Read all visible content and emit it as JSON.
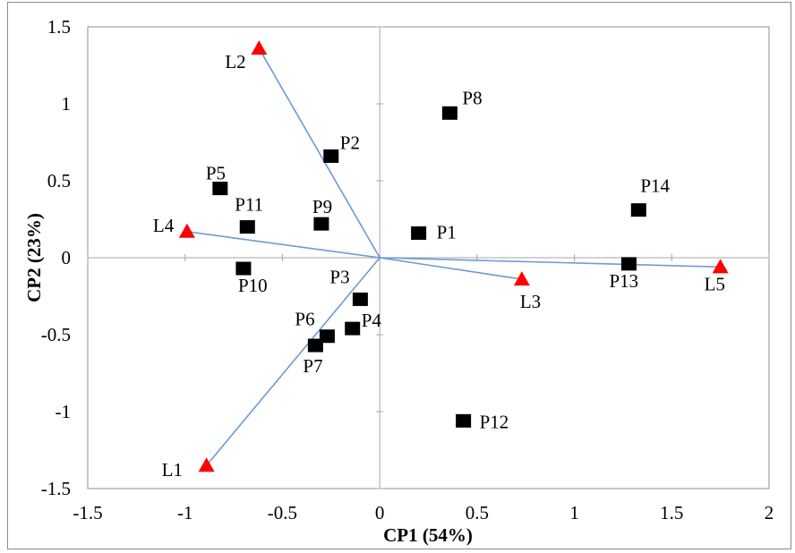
{
  "chart_data": {
    "type": "scatter",
    "title": "",
    "xlabel": "CP1 (54%)",
    "ylabel": "CP2 (23%)",
    "xlim": [
      -1.5,
      2
    ],
    "ylim": [
      -1.5,
      1.5
    ],
    "xticks": [
      -1.5,
      -1,
      -0.5,
      0,
      0.5,
      1,
      1.5,
      2
    ],
    "yticks": [
      -1.5,
      -1,
      -0.5,
      0,
      0.5,
      1,
      1.5
    ],
    "grid": false,
    "legend": "none",
    "series": [
      {
        "name": "",
        "marker": "square",
        "color": "#000000",
        "points": [
          {
            "label": "P1",
            "x": 0.2,
            "y": 0.16
          },
          {
            "label": "P2",
            "x": -0.25,
            "y": 0.66
          },
          {
            "label": "P3",
            "x": -0.1,
            "y": -0.27
          },
          {
            "label": "P4",
            "x": -0.14,
            "y": -0.46
          },
          {
            "label": "P5",
            "x": -0.82,
            "y": 0.45
          },
          {
            "label": "P6",
            "x": -0.27,
            "y": -0.51
          },
          {
            "label": "P7",
            "x": -0.33,
            "y": -0.57
          },
          {
            "label": "P8",
            "x": 0.36,
            "y": 0.94
          },
          {
            "label": "P9",
            "x": -0.3,
            "y": 0.22
          },
          {
            "label": "P10",
            "x": -0.7,
            "y": -0.07
          },
          {
            "label": "P11",
            "x": -0.68,
            "y": 0.2
          },
          {
            "label": "P12",
            "x": 0.43,
            "y": -1.06
          },
          {
            "label": "P13",
            "x": 1.28,
            "y": -0.04
          },
          {
            "label": "P14",
            "x": 1.33,
            "y": 0.31
          }
        ]
      },
      {
        "name": "",
        "marker": "triangle",
        "color": "#ff0000",
        "line_color": "#6b9bd2",
        "points": [
          {
            "label": "L1",
            "x": -0.89,
            "y": -1.35
          },
          {
            "label": "L2",
            "x": -0.62,
            "y": 1.36
          },
          {
            "label": "L3",
            "x": 0.73,
            "y": -0.14
          },
          {
            "label": "L4",
            "x": -0.99,
            "y": 0.17
          },
          {
            "label": "L5",
            "x": 1.75,
            "y": -0.06
          }
        ]
      }
    ]
  }
}
